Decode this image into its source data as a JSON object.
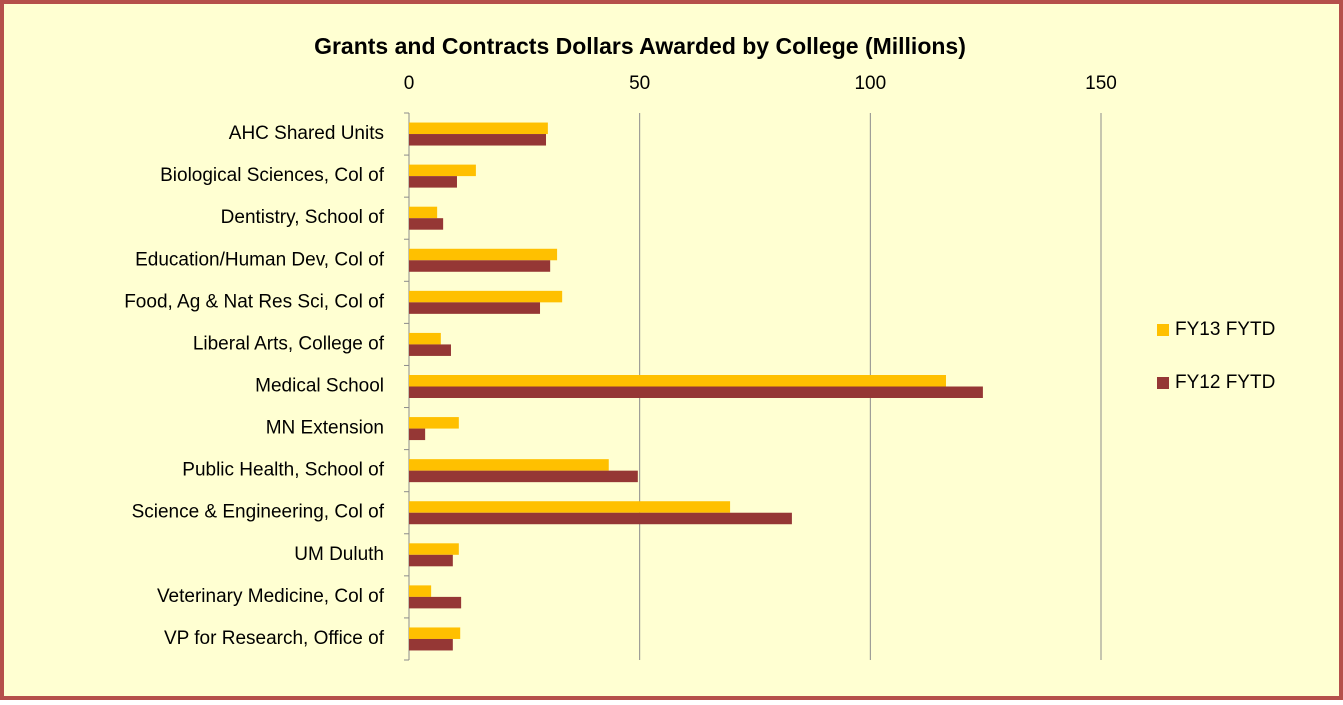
{
  "chart_data": {
    "type": "hbar",
    "title": "Grants and Contracts Dollars Awarded by College (Millions)",
    "categories": [
      "AHC Shared Units",
      "Biological Sciences, Col of",
      "Dentistry, School of",
      "Education/Human Dev, Col of",
      "Food, Ag & Nat Res Sci, Col of",
      "Liberal Arts, College of",
      "Medical School",
      "MN Extension",
      "Public Health, School of",
      "Science & Engineering, Col of",
      "UM Duluth",
      "Veterinary Medicine, Col of",
      "VP for Research, Office of"
    ],
    "series": [
      {
        "name": "FY13 FYTD",
        "color": "#ffc000",
        "values": [
          30.1,
          14.5,
          6.1,
          32.1,
          33.2,
          6.9,
          116.4,
          10.8,
          43.3,
          69.6,
          10.8,
          4.8,
          11.1
        ]
      },
      {
        "name": "FY12 FYTD",
        "color": "#953735",
        "values": [
          29.7,
          10.4,
          7.4,
          30.6,
          28.4,
          9.1,
          124.4,
          3.5,
          49.6,
          83.0,
          9.5,
          11.3,
          9.5
        ]
      }
    ],
    "xlim": [
      0,
      150
    ],
    "xticks": [
      0,
      50,
      100,
      150
    ],
    "grid": true,
    "legend": "right"
  }
}
